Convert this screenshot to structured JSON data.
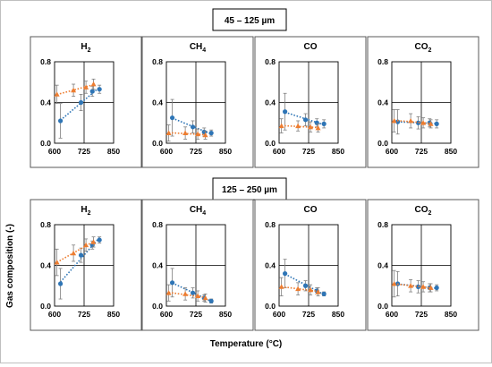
{
  "chart_data": {
    "type": "scatter",
    "ylabel": "Gas composition (-)",
    "xlabel": "Temperature (°C)",
    "x_ticks": [
      600,
      725,
      850
    ],
    "y_ticks": [
      0.0,
      0.4,
      0.8
    ],
    "xlim": [
      600,
      850
    ],
    "ylim": [
      0,
      0.8
    ],
    "gridlines": {
      "x": 725,
      "y": 0.4
    },
    "series_colors": [
      "#2e75b6",
      "#ed7d31"
    ],
    "panel_titles": [
      {
        "main": "H",
        "sub": "2"
      },
      {
        "main": "CH",
        "sub": "4"
      },
      {
        "main": "CO",
        "sub": ""
      },
      {
        "main": "CO",
        "sub": "2"
      }
    ],
    "rows": [
      {
        "label": "45 – 125 µm",
        "panels": [
          {
            "gas": "H2",
            "series": [
              {
                "color": "#2e75b6",
                "x": [
                  625,
                  712,
                  760,
                  790
                ],
                "y": [
                  0.22,
                  0.4,
                  0.51,
                  0.53
                ],
                "err": [
                  0.17,
                  0.08,
                  0.05,
                  0.04
                ]
              },
              {
                "color": "#ed7d31",
                "x": [
                  610,
                  680,
                  733,
                  765
                ],
                "y": [
                  0.48,
                  0.52,
                  0.55,
                  0.58
                ],
                "err": [
                  0.09,
                  0.06,
                  0.06,
                  0.05
                ]
              }
            ]
          },
          {
            "gas": "CH4",
            "series": [
              {
                "color": "#2e75b6",
                "x": [
                  625,
                  712,
                  760,
                  790
                ],
                "y": [
                  0.25,
                  0.16,
                  0.11,
                  0.1
                ],
                "err": [
                  0.18,
                  0.06,
                  0.04,
                  0.03
                ]
              },
              {
                "color": "#ed7d31",
                "x": [
                  610,
                  680,
                  733,
                  765
                ],
                "y": [
                  0.1,
                  0.1,
                  0.09,
                  0.08
                ],
                "err": [
                  0.08,
                  0.06,
                  0.05,
                  0.04
                ]
              }
            ]
          },
          {
            "gas": "CO",
            "series": [
              {
                "color": "#2e75b6",
                "x": [
                  625,
                  712,
                  760,
                  790
                ],
                "y": [
                  0.31,
                  0.23,
                  0.2,
                  0.19
                ],
                "err": [
                  0.18,
                  0.06,
                  0.04,
                  0.04
                ]
              },
              {
                "color": "#ed7d31",
                "x": [
                  610,
                  680,
                  733,
                  765
                ],
                "y": [
                  0.17,
                  0.17,
                  0.16,
                  0.15
                ],
                "err": [
                  0.07,
                  0.05,
                  0.05,
                  0.04
                ]
              }
            ]
          },
          {
            "gas": "CO2",
            "series": [
              {
                "color": "#2e75b6",
                "x": [
                  625,
                  712,
                  760,
                  790
                ],
                "y": [
                  0.21,
                  0.2,
                  0.2,
                  0.19
                ],
                "err": [
                  0.12,
                  0.06,
                  0.04,
                  0.04
                ]
              },
              {
                "color": "#ed7d31",
                "x": [
                  610,
                  680,
                  733,
                  765
                ],
                "y": [
                  0.22,
                  0.22,
                  0.2,
                  0.19
                ],
                "err": [
                  0.11,
                  0.07,
                  0.05,
                  0.04
                ]
              }
            ]
          }
        ]
      },
      {
        "label": "125 – 250 µm",
        "panels": [
          {
            "gas": "H2",
            "series": [
              {
                "color": "#2e75b6",
                "x": [
                  625,
                  712,
                  760,
                  790
                ],
                "y": [
                  0.22,
                  0.5,
                  0.6,
                  0.65
                ],
                "err": [
                  0.15,
                  0.07,
                  0.04,
                  0.03
                ]
              },
              {
                "color": "#ed7d31",
                "x": [
                  610,
                  680,
                  733,
                  765
                ],
                "y": [
                  0.43,
                  0.52,
                  0.6,
                  0.63
                ],
                "err": [
                  0.13,
                  0.08,
                  0.06,
                  0.05
                ]
              }
            ]
          },
          {
            "gas": "CH4",
            "series": [
              {
                "color": "#2e75b6",
                "x": [
                  625,
                  712,
                  760,
                  790
                ],
                "y": [
                  0.23,
                  0.13,
                  0.08,
                  0.05
                ],
                "err": [
                  0.14,
                  0.05,
                  0.03,
                  0.02
                ]
              },
              {
                "color": "#ed7d31",
                "x": [
                  610,
                  680,
                  733,
                  765
                ],
                "y": [
                  0.13,
                  0.12,
                  0.1,
                  0.08
                ],
                "err": [
                  0.08,
                  0.06,
                  0.05,
                  0.04
                ]
              }
            ]
          },
          {
            "gas": "CO",
            "series": [
              {
                "color": "#2e75b6",
                "x": [
                  625,
                  712,
                  760,
                  790
                ],
                "y": [
                  0.32,
                  0.2,
                  0.15,
                  0.12
                ],
                "err": [
                  0.14,
                  0.05,
                  0.03,
                  0.02
                ]
              },
              {
                "color": "#ed7d31",
                "x": [
                  610,
                  680,
                  733,
                  765
                ],
                "y": [
                  0.19,
                  0.17,
                  0.16,
                  0.14
                ],
                "err": [
                  0.09,
                  0.06,
                  0.05,
                  0.04
                ]
              }
            ]
          },
          {
            "gas": "CO2",
            "series": [
              {
                "color": "#2e75b6",
                "x": [
                  625,
                  712,
                  760,
                  790
                ],
                "y": [
                  0.22,
                  0.19,
                  0.18,
                  0.18
                ],
                "err": [
                  0.12,
                  0.06,
                  0.04,
                  0.03
                ]
              },
              {
                "color": "#ed7d31",
                "x": [
                  610,
                  680,
                  733,
                  765
                ],
                "y": [
                  0.22,
                  0.2,
                  0.19,
                  0.18
                ],
                "err": [
                  0.13,
                  0.06,
                  0.05,
                  0.04
                ]
              }
            ]
          }
        ]
      }
    ]
  }
}
